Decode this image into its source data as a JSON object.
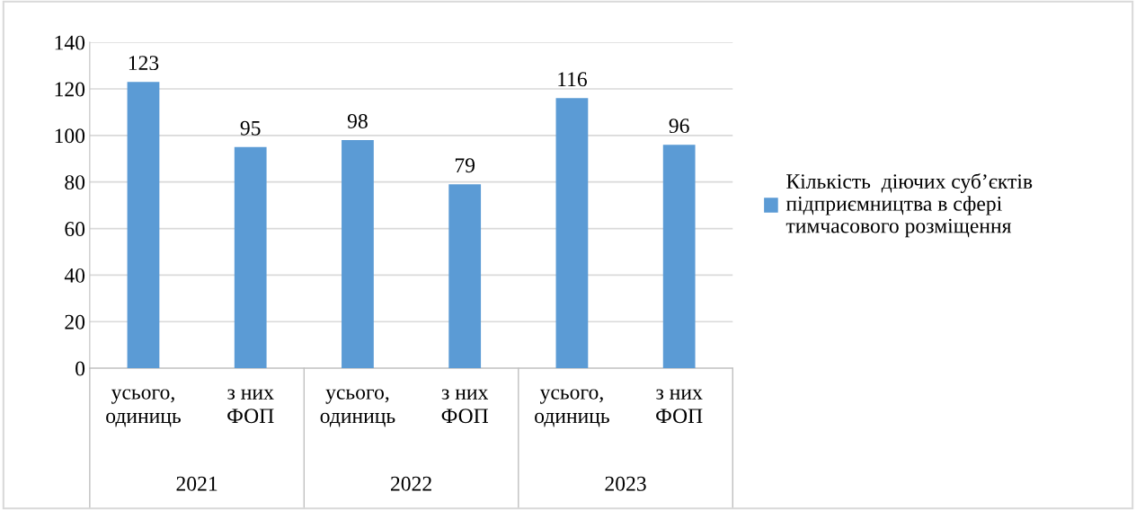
{
  "chart_data": {
    "type": "bar",
    "categories": [
      "усього, одиниць",
      "з них ФОП",
      "усього, одиниць",
      "з них ФОП",
      "усього, одиниць",
      "з них ФОП"
    ],
    "annotations": [
      "2021",
      "2022",
      "2023"
    ],
    "series": [
      {
        "name": "Кількість  діючих суб’єктів підприємництва в сфері тимчасового розміщення",
        "color": "#5b9bd5",
        "values": [
          123,
          95,
          98,
          79,
          116,
          96
        ]
      }
    ],
    "ylim": [
      0,
      140
    ],
    "yticks": [
      0,
      20,
      40,
      60,
      80,
      100,
      120,
      140
    ],
    "grid": "y",
    "legend": "right",
    "data_labels": true
  }
}
